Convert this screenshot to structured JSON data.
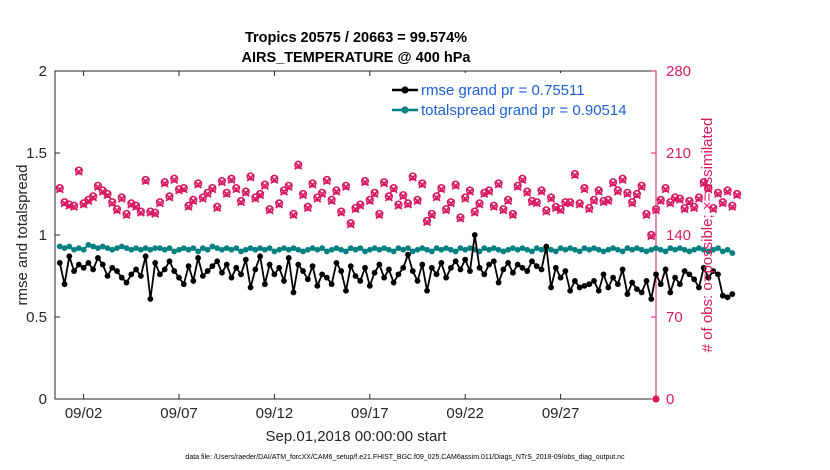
{
  "chart_data": {
    "type": "line",
    "title_line1": "Tropics 20575 / 20663 = 99.574%",
    "title_line2": "AIRS_TEMPERATURE @ 400 hPa",
    "xlabel": "Sep.01,2018 00:00:00 start",
    "ylabel_left": "rmse and totalspread",
    "ylabel_right": "# of obs: o=possible; ×=assimilated",
    "xlim": [
      0.5,
      32
    ],
    "ylim_left": [
      0,
      2
    ],
    "ylim_right": [
      0,
      280
    ],
    "x_ticks": [
      {
        "value": 2,
        "label": "09/02"
      },
      {
        "value": 7,
        "label": "09/07"
      },
      {
        "value": 12,
        "label": "09/12"
      },
      {
        "value": 17,
        "label": "09/17"
      },
      {
        "value": 22,
        "label": "09/22"
      },
      {
        "value": 27,
        "label": "09/27"
      }
    ],
    "y_ticks_left": [
      {
        "value": 0,
        "label": "0"
      },
      {
        "value": 0.5,
        "label": "0.5"
      },
      {
        "value": 1,
        "label": "1"
      },
      {
        "value": 1.5,
        "label": "1.5"
      },
      {
        "value": 2,
        "label": "2"
      }
    ],
    "y_ticks_right": [
      {
        "value": 0,
        "label": "0"
      },
      {
        "value": 70,
        "label": "70"
      },
      {
        "value": 140,
        "label": "140"
      },
      {
        "value": 210,
        "label": "210"
      },
      {
        "value": 280,
        "label": "280"
      }
    ],
    "x_start": 0.75,
    "x_step": 0.25,
    "series": [
      {
        "name": "rmse",
        "legend": "rmse grand pr = 0.75511",
        "color": "#000000",
        "axis": "left",
        "values": [
          0.83,
          0.7,
          0.87,
          0.78,
          0.82,
          0.8,
          0.83,
          0.79,
          0.86,
          0.82,
          0.75,
          0.8,
          0.78,
          0.74,
          0.71,
          0.76,
          0.79,
          0.75,
          0.87,
          0.61,
          0.83,
          0.76,
          0.79,
          0.84,
          0.78,
          0.74,
          0.7,
          0.81,
          0.72,
          0.86,
          0.75,
          0.78,
          0.81,
          0.84,
          0.77,
          0.82,
          0.74,
          0.8,
          0.76,
          0.85,
          0.68,
          0.79,
          0.87,
          0.7,
          0.82,
          0.76,
          0.8,
          0.72,
          0.86,
          0.65,
          0.82,
          0.78,
          0.73,
          0.81,
          0.69,
          0.76,
          0.74,
          0.7,
          0.83,
          0.78,
          0.66,
          0.81,
          0.75,
          0.72,
          0.8,
          0.69,
          0.77,
          0.82,
          0.74,
          0.79,
          0.71,
          0.76,
          0.8,
          0.88,
          0.78,
          0.72,
          0.82,
          0.66,
          0.8,
          0.76,
          0.83,
          0.74,
          0.8,
          0.84,
          0.79,
          0.85,
          0.78,
          1.0,
          0.8,
          0.76,
          0.82,
          0.84,
          0.71,
          0.79,
          0.83,
          0.77,
          0.82,
          0.8,
          0.78,
          0.84,
          0.81,
          0.79,
          0.93,
          0.68,
          0.8,
          0.74,
          0.78,
          0.66,
          0.72,
          0.68,
          0.69,
          0.7,
          0.72,
          0.66,
          0.76,
          0.68,
          0.74,
          0.7,
          0.79,
          0.64,
          0.71,
          0.67,
          0.65,
          0.72,
          0.61,
          0.76,
          0.7,
          0.79,
          0.65,
          0.74,
          0.7,
          0.78,
          0.76,
          0.73,
          0.68,
          0.8,
          0.74,
          0.78,
          0.76,
          0.63,
          0.62,
          0.64
        ]
      },
      {
        "name": "totalspread",
        "legend": "totalspread grand pr = 0.90514",
        "color": "#008080",
        "axis": "left",
        "values": [
          0.93,
          0.92,
          0.93,
          0.91,
          0.92,
          0.91,
          0.94,
          0.93,
          0.92,
          0.93,
          0.92,
          0.91,
          0.92,
          0.93,
          0.92,
          0.91,
          0.92,
          0.91,
          0.92,
          0.91,
          0.92,
          0.92,
          0.91,
          0.92,
          0.9,
          0.91,
          0.92,
          0.91,
          0.92,
          0.9,
          0.92,
          0.91,
          0.93,
          0.92,
          0.91,
          0.92,
          0.91,
          0.92,
          0.9,
          0.91,
          0.92,
          0.91,
          0.92,
          0.91,
          0.92,
          0.9,
          0.91,
          0.92,
          0.91,
          0.92,
          0.91,
          0.9,
          0.91,
          0.92,
          0.91,
          0.92,
          0.9,
          0.91,
          0.92,
          0.91,
          0.9,
          0.92,
          0.91,
          0.92,
          0.9,
          0.91,
          0.92,
          0.91,
          0.92,
          0.91,
          0.9,
          0.92,
          0.91,
          0.92,
          0.9,
          0.91,
          0.92,
          0.91,
          0.9,
          0.92,
          0.91,
          0.92,
          0.91,
          0.9,
          0.92,
          0.91,
          0.92,
          0.91,
          0.9,
          0.92,
          0.91,
          0.92,
          0.91,
          0.9,
          0.91,
          0.92,
          0.91,
          0.92,
          0.91,
          0.9,
          0.92,
          0.91,
          0.92,
          0.91,
          0.9,
          0.92,
          0.91,
          0.92,
          0.91,
          0.9,
          0.92,
          0.91,
          0.92,
          0.91,
          0.9,
          0.91,
          0.92,
          0.91,
          0.9,
          0.92,
          0.91,
          0.92,
          0.91,
          0.9,
          0.91,
          0.92,
          0.91,
          0.9,
          0.92,
          0.91,
          0.92,
          0.91,
          0.9,
          0.91,
          0.92,
          0.91,
          0.9,
          0.91,
          0.92,
          0.9,
          0.91,
          0.89
        ]
      },
      {
        "name": "obs_possible",
        "legend": "o=possible",
        "color": "#d81b60",
        "axis": "right",
        "values": [
          180,
          168,
          166,
          165,
          195,
          167,
          170,
          173,
          182,
          178,
          175,
          168,
          162,
          172,
          158,
          167,
          165,
          160,
          187,
          160,
          159,
          168,
          185,
          173,
          188,
          179,
          180,
          165,
          170,
          184,
          172,
          176,
          180,
          164,
          186,
          176,
          188,
          180,
          169,
          177,
          190,
          172,
          175,
          183,
          162,
          188,
          167,
          178,
          182,
          158,
          200,
          175,
          164,
          184,
          172,
          176,
          187,
          170,
          178,
          160,
          182,
          150,
          163,
          166,
          186,
          170,
          176,
          158,
          185,
          173,
          180,
          166,
          174,
          167,
          190,
          170,
          184,
          152,
          158,
          173,
          180,
          162,
          168,
          183,
          155,
          172,
          178,
          160,
          167,
          176,
          178,
          165,
          184,
          162,
          170,
          158,
          182,
          188,
          177,
          169,
          168,
          178,
          161,
          172,
          164,
          162,
          168,
          168,
          192,
          167,
          180,
          163,
          170,
          178,
          169,
          170,
          185,
          178,
          188,
          176,
          168,
          175,
          182,
          158,
          140,
          162,
          170,
          180,
          168,
          172,
          171,
          163,
          169,
          164,
          172,
          185,
          180,
          163,
          176,
          168,
          178,
          165,
          175
        ]
      },
      {
        "name": "obs_assimilated",
        "legend": "×=assimilated",
        "color": "#d81b60",
        "axis": "right",
        "values": [
          179,
          167,
          165,
          164,
          194,
          166,
          169,
          172,
          181,
          177,
          174,
          167,
          161,
          171,
          157,
          166,
          164,
          159,
          186,
          159,
          158,
          167,
          184,
          172,
          187,
          178,
          179,
          164,
          169,
          183,
          171,
          175,
          179,
          163,
          185,
          175,
          187,
          179,
          168,
          176,
          189,
          171,
          174,
          182,
          161,
          187,
          166,
          177,
          181,
          157,
          199,
          174,
          163,
          183,
          171,
          175,
          186,
          169,
          177,
          159,
          181,
          149,
          162,
          165,
          185,
          169,
          175,
          157,
          184,
          172,
          179,
          165,
          173,
          166,
          189,
          169,
          183,
          151,
          157,
          172,
          179,
          161,
          167,
          182,
          154,
          171,
          177,
          159,
          166,
          175,
          177,
          164,
          183,
          161,
          169,
          157,
          181,
          187,
          176,
          168,
          167,
          177,
          160,
          171,
          163,
          161,
          167,
          167,
          191,
          166,
          179,
          162,
          169,
          177,
          168,
          169,
          184,
          177,
          187,
          175,
          167,
          174,
          181,
          157,
          139,
          161,
          169,
          179,
          167,
          171,
          170,
          162,
          168,
          163,
          171,
          184,
          179,
          162,
          175,
          167,
          177,
          164,
          174
        ]
      }
    ],
    "footnote": "data file: /Users/raeder/DAI/ATM_forcXX/CAM6_setup/f.e21.FHIST_BGC.f09_025.CAM6assim.011/Diags_NTrS_2018-09/obs_diag_output.nc"
  }
}
